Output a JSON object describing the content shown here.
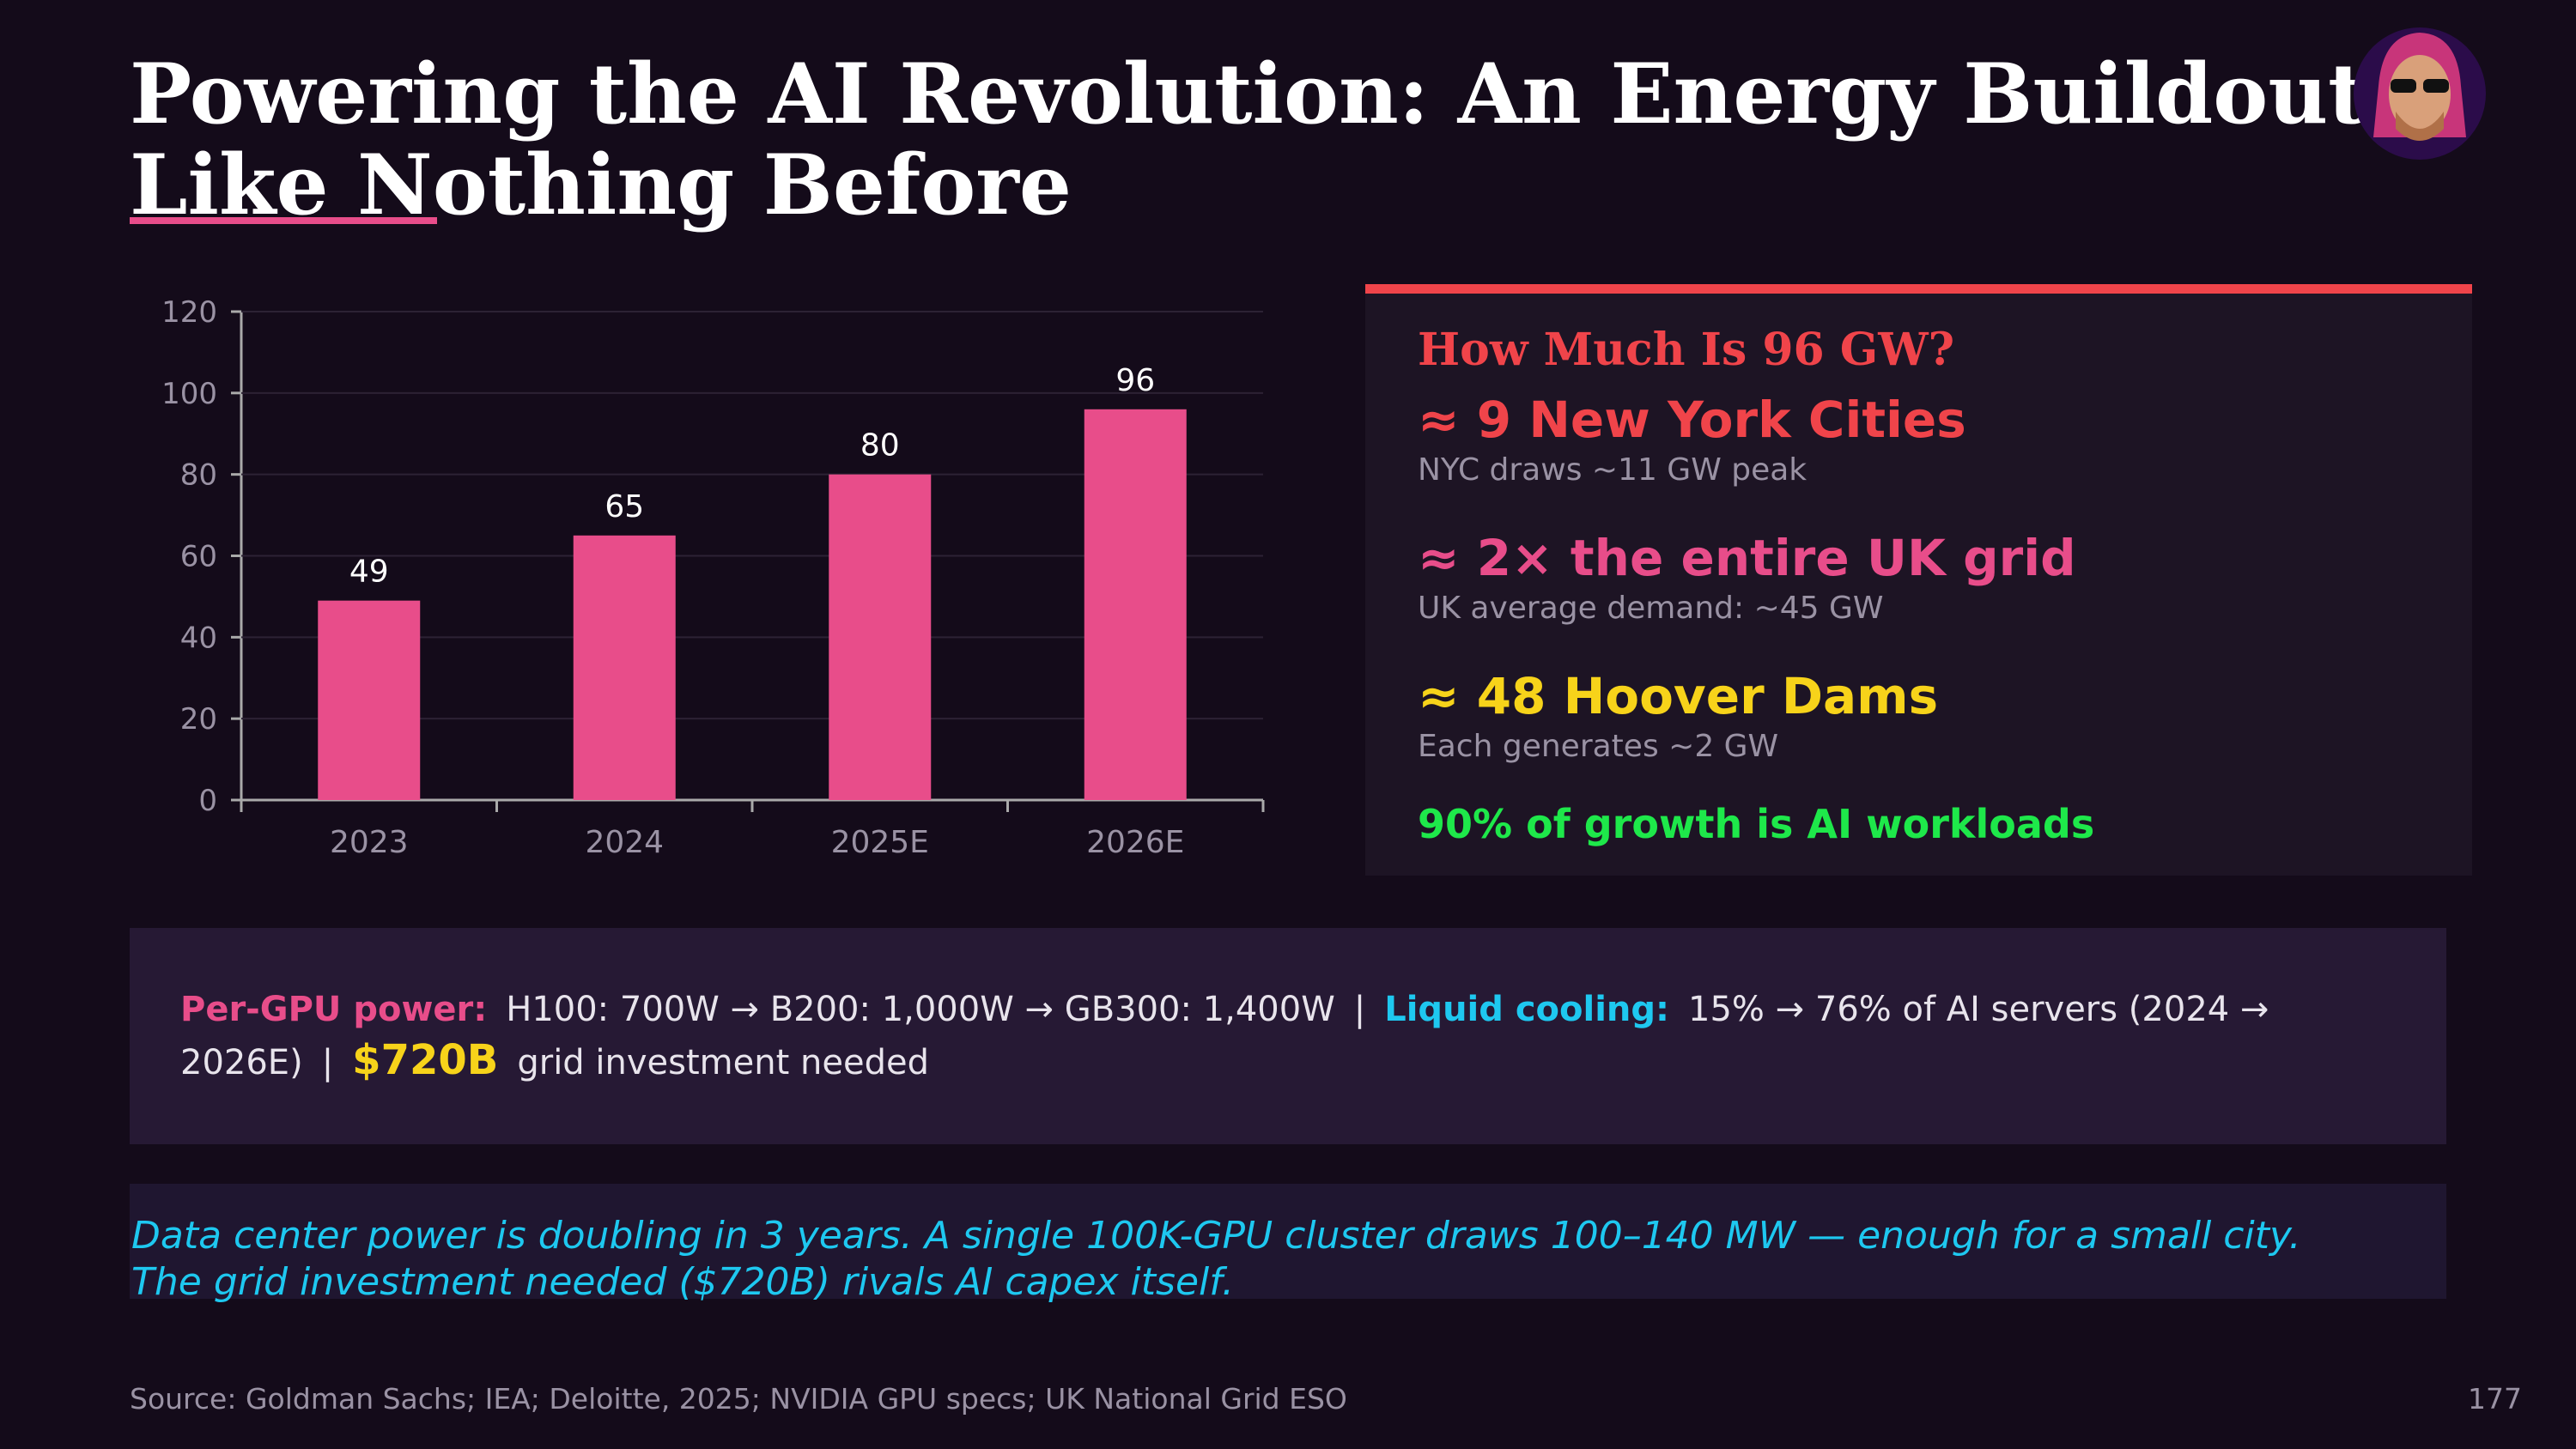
{
  "header": {
    "title_lines": [
      "Powering the AI Revolution: An Energy Buildout",
      "Like Nothing Before"
    ]
  },
  "chart_data": {
    "type": "bar",
    "categories": [
      "2023",
      "2024",
      "2025E",
      "2026E"
    ],
    "values": [
      49,
      65,
      80,
      96
    ],
    "color": "#e84d8a",
    "ylim": [
      0,
      120
    ],
    "yticks": [
      0,
      20,
      40,
      60,
      80,
      100,
      120
    ],
    "grid": true
  },
  "panel": {
    "title": "How Much Is 96 GW?",
    "items": [
      {
        "headline": "≈ 9 New York Cities",
        "detail": "NYC draws ~11 GW peak",
        "color": "#f0444a"
      },
      {
        "headline": "≈ 2× the entire UK grid",
        "detail": "UK average demand: ~45 GW",
        "color": "#e84d8a"
      },
      {
        "headline": "≈ 48 Hoover Dams",
        "detail": "Each generates ~2 GW",
        "color": "#f7d31a"
      }
    ],
    "footnote": "90% of growth is AI workloads"
  },
  "info": {
    "gpu_label": "Per-GPU power:",
    "gpu_text": "H100: 700W → B200: 1,000W → GB300: 1,400W",
    "separator_1": "|",
    "cooling_label": "Liquid cooling:",
    "cooling_text": "15% → 76% of AI servers (2024 → 2026E)",
    "separator_2": "|",
    "capex_value": "$720B",
    "capex_text": "grid investment needed"
  },
  "quote": {
    "lines": [
      "Data center power is doubling in 3 years. A single 100K-GPU cluster draws 100–140 MW — enough for a small city.",
      "The grid investment needed ($720B) rivals AI capex itself."
    ]
  },
  "footer": {
    "source": "Source: Goldman Sachs; IEA; Deloitte, 2025; NVIDIA GPU specs; UK National Grid ESO",
    "page_number": "177"
  }
}
